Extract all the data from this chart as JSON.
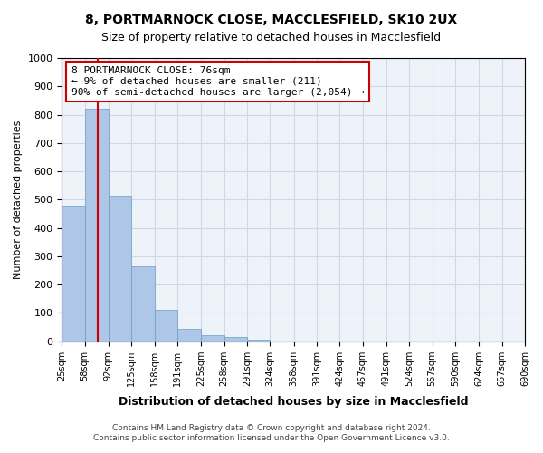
{
  "title_line1": "8, PORTMARNOCK CLOSE, MACCLESFIELD, SK10 2UX",
  "title_line2": "Size of property relative to detached houses in Macclesfield",
  "xlabel": "Distribution of detached houses by size in Macclesfield",
  "ylabel": "Number of detached properties",
  "bin_labels": [
    "25sqm",
    "58sqm",
    "92sqm",
    "125sqm",
    "158sqm",
    "191sqm",
    "225sqm",
    "258sqm",
    "291sqm",
    "324sqm",
    "358sqm",
    "391sqm",
    "424sqm",
    "457sqm",
    "491sqm",
    "524sqm",
    "557sqm",
    "590sqm",
    "624sqm",
    "657sqm",
    "690sqm"
  ],
  "bin_edges": [
    25,
    58,
    92,
    125,
    158,
    191,
    225,
    258,
    291,
    324,
    358,
    391,
    424,
    457,
    491,
    524,
    557,
    590,
    624,
    657,
    690
  ],
  "bar_heights": [
    480,
    820,
    515,
    265,
    110,
    45,
    20,
    15,
    5,
    0,
    0,
    0,
    0,
    0,
    0,
    0,
    0,
    0,
    0,
    0
  ],
  "bar_color": "#aec6e8",
  "bar_edge_color": "#6a9fc0",
  "grid_color": "#d0d8e8",
  "vline_x": 76,
  "vline_color": "#cc0000",
  "ylim": [
    0,
    1000
  ],
  "yticks": [
    0,
    100,
    200,
    300,
    400,
    500,
    600,
    700,
    800,
    900,
    1000
  ],
  "annotation_text": "8 PORTMARNOCK CLOSE: 76sqm\n← 9% of detached houses are smaller (211)\n90% of semi-detached houses are larger (2,054) →",
  "annotation_box_color": "#ffffff",
  "annotation_border_color": "#cc0000",
  "footer_line1": "Contains HM Land Registry data © Crown copyright and database right 2024.",
  "footer_line2": "Contains public sector information licensed under the Open Government Licence v3.0.",
  "background_color": "#eef2f9"
}
